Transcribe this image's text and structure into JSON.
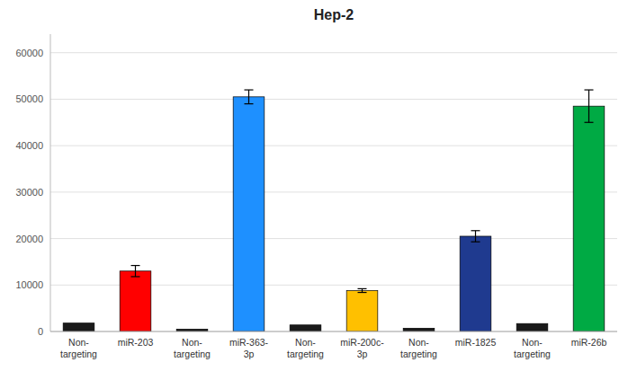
{
  "chart_data": {
    "type": "bar",
    "title": "Hep-2",
    "categories": [
      "Non-\ntargeting",
      "miR-203",
      "Non-\ntargeting",
      "miR-363-\n3p",
      "Non-\ntargeting",
      "miR-200c-\n3p",
      "Non-\ntargeting",
      "miR-1825",
      "Non-\ntargeting",
      "miR-26b"
    ],
    "values": [
      1800,
      13000,
      500,
      50500,
      1400,
      8800,
      700,
      20500,
      1700,
      48500
    ],
    "errors": [
      0,
      1200,
      0,
      1500,
      0,
      400,
      0,
      1200,
      0,
      3500
    ],
    "colors": [
      "#1a1a1a",
      "#ff0000",
      "#1a1a1a",
      "#1e90ff",
      "#1a1a1a",
      "#ffc000",
      "#1a1a1a",
      "#1f3a8f",
      "#1a1a1a",
      "#00aa44"
    ],
    "ylim": [
      0,
      64000
    ],
    "yticks": [
      0,
      10000,
      20000,
      30000,
      40000,
      50000,
      60000
    ],
    "grid": true
  }
}
